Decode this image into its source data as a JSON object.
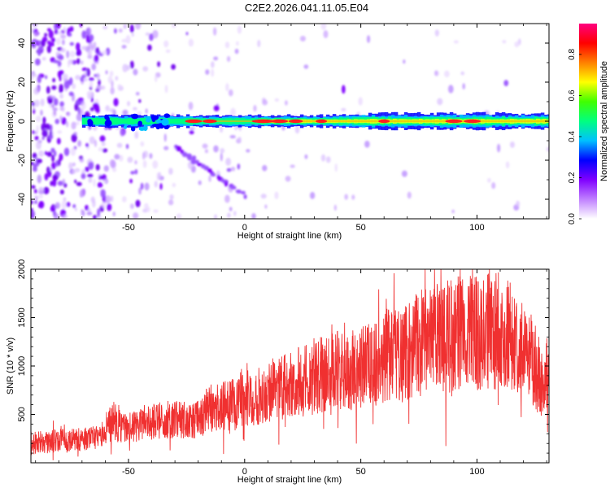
{
  "page_title": "C2E2.2026.041.11.05.E04",
  "chart_data": [
    {
      "type": "heatmap",
      "title": "C2E2.2026.041.11.05.E04",
      "xlabel": "Height of straight line (km)",
      "ylabel": "Frequency (Hz)",
      "xlim": [
        -92,
        131
      ],
      "ylim": [
        -50,
        50
      ],
      "xticks": [
        -50,
        0,
        50,
        100
      ],
      "yticks": [
        -40,
        -20,
        0,
        20,
        40
      ],
      "features": {
        "main_line_frequency_hz": 0,
        "main_line_start_km": -70,
        "diagonal_echo": {
          "start_km": -30,
          "start_hz": -13,
          "end_km": 0,
          "end_hz": -38
        }
      },
      "colorbar": {
        "label": "Normalized spectral amplitude",
        "range": [
          0,
          0.95
        ],
        "ticks": [
          0,
          0.2,
          0.4,
          0.6,
          0.8
        ],
        "tick_labels": [
          "0.0",
          "0.2",
          "0.4",
          "0.6",
          "0.8"
        ],
        "colormap": [
          "#ffffff",
          "#c080ff",
          "#8000ff",
          "#0000ff",
          "#00c0ff",
          "#00ff80",
          "#40ff00",
          "#ffff00",
          "#ff8000",
          "#ff0000",
          "#ff0080"
        ]
      }
    },
    {
      "type": "line",
      "xlabel": "Height of straight line (km)",
      "ylabel": "SNR (10 * v/v)",
      "xlim": [
        -92,
        131
      ],
      "ylim": [
        0,
        2000
      ],
      "xticks": [
        -50,
        0,
        50,
        100
      ],
      "yticks": [
        500,
        1000,
        1500,
        2000
      ],
      "color": "#f03030",
      "series": [
        {
          "name": "SNR",
          "x": [
            -92,
            -80,
            -70,
            -62,
            -58,
            -50,
            -40,
            -30,
            -22,
            -15,
            -5,
            0,
            10,
            20,
            30,
            40,
            50,
            60,
            70,
            78,
            85,
            90,
            95,
            100,
            105,
            110,
            115,
            120,
            125,
            128,
            131
          ],
          "y": [
            200,
            230,
            240,
            270,
            400,
            360,
            420,
            450,
            420,
            560,
            600,
            650,
            740,
            800,
            880,
            950,
            1000,
            1080,
            1150,
            1260,
            1300,
            1320,
            1340,
            1350,
            1370,
            1360,
            1300,
            1180,
            1000,
            820,
            950
          ]
        }
      ]
    }
  ]
}
